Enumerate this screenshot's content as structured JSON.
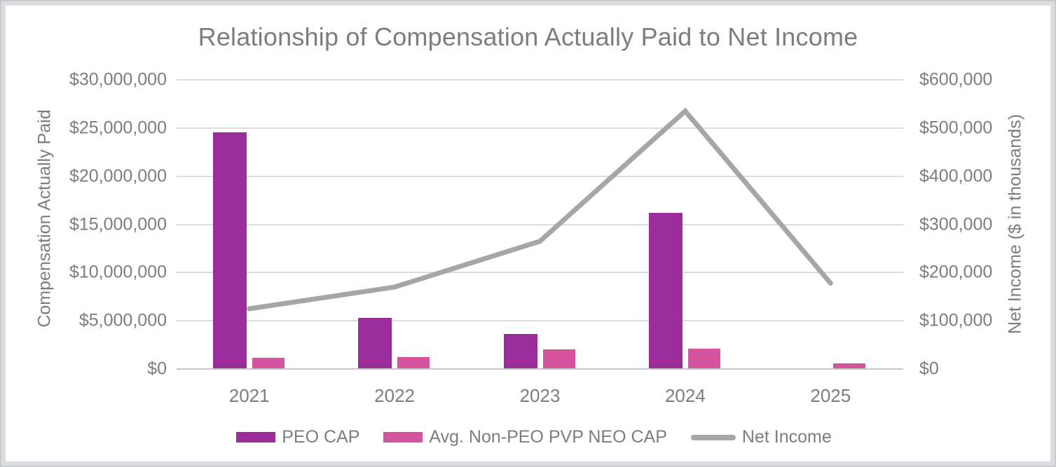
{
  "chart_data": {
    "type": "bar",
    "subtype": "combo-bar-line-dual-axis",
    "title": "Relationship of Compensation Actually Paid to Net Income",
    "categories": [
      "2021",
      "2022",
      "2023",
      "2024",
      "2025"
    ],
    "series": [
      {
        "name": "PEO CAP",
        "kind": "bar",
        "axis": "left",
        "color": "#9a2d9a",
        "values": [
          24500000,
          5200000,
          3550000,
          16100000,
          0
        ]
      },
      {
        "name": "Avg. Non-PEO PVP NEO CAP",
        "kind": "bar",
        "axis": "left",
        "color": "#d4549e",
        "values": [
          1100000,
          1150000,
          1950000,
          2050000,
          500000
        ]
      },
      {
        "name": "Net Income",
        "kind": "line",
        "axis": "right",
        "color": "#a6a6a6",
        "values": [
          125000,
          170000,
          265000,
          535000,
          178000
        ]
      }
    ],
    "left_axis": {
      "label": "Compensation Actually Paid",
      "min": 0,
      "max": 30000000,
      "tick_step": 5000000,
      "tick_labels": [
        "$30,000,000",
        "$25,000,000",
        "$20,000,000",
        "$15,000,000",
        "$10,000,000",
        "$5,000,000",
        "$0"
      ]
    },
    "right_axis": {
      "label": "Net Income ($ in thousands)",
      "min": 0,
      "max": 600000,
      "tick_step": 100000,
      "tick_labels": [
        "$600,000",
        "$500,000",
        "$400,000",
        "$300,000",
        "$200,000",
        "$100,000",
        "$0"
      ]
    },
    "grid": "horizontal",
    "legend_position": "bottom",
    "colors": {
      "text": "#7d7d7d",
      "gridline": "#dcdcdc",
      "baseline": "#c7c7c7",
      "frame_border": "#dcddde"
    }
  }
}
